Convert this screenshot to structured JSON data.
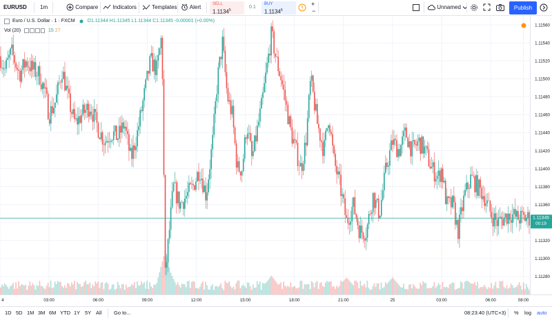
{
  "toolbar": {
    "symbol": "EURUSD",
    "interval": "1m",
    "compare_label": "Compare",
    "indicators_label": "Indicators",
    "templates_label": "Templates",
    "alert_label": "Alert",
    "sell_label": "SELL",
    "sell_price": "1.1134",
    "sell_price_sup": "5",
    "spread": "0.1",
    "buy_label": "BUY",
    "buy_price": "1.1134",
    "buy_price_sup": "6",
    "layout_name": "Unnamed",
    "publish_label": "Publish",
    "icons": [
      "compare-icon",
      "indicators-icon",
      "templates-icon",
      "alert-icon",
      "info-icon",
      "plus-icon",
      "minus-icon",
      "checkbox-icon",
      "cloud-icon",
      "chevron-down-icon",
      "gear-icon",
      "fullscreen-icon",
      "camera-icon",
      "arrow-right-icon"
    ]
  },
  "legend": {
    "title": "Euro / U.S. Dollar · 1 · FXCM",
    "ohlc": "O1.11344  H1.11345  L1.11344  C1.11345  -0.00001 (+0.00%)",
    "vol_label": "Vol (20)",
    "vol_a": "15",
    "vol_b": "27"
  },
  "colors": {
    "up": "#26a69a",
    "down": "#ef5350",
    "last_price": "#26a69a",
    "grid": "#f0f3fa",
    "axis_text": "#131722"
  },
  "chart_data": {
    "type": "candlestick",
    "symbol": "EURUSD",
    "ylim": [
      1.1126,
      1.1157
    ],
    "yticks": [
      1.1128,
      1.113,
      1.1132,
      1.1134,
      1.1136,
      1.1138,
      1.114,
      1.1142,
      1.1144,
      1.1146,
      1.1148,
      1.115,
      1.1152,
      1.1154,
      1.1156
    ],
    "ytick_labels": [
      "1.11280",
      "1.11300",
      "1.11320",
      "1.11340",
      "1.11360",
      "1.11380",
      "1.11400",
      "1.11420",
      "1.11440",
      "1.11460",
      "1.11480",
      "1.11500",
      "1.11520",
      "1.11540",
      "1.11560"
    ],
    "xrange_hours": [
      0.0,
      32.4
    ],
    "xticks": [
      {
        "label": "4",
        "h": 0
      },
      {
        "label": "03:00",
        "h": 3
      },
      {
        "label": "06:00",
        "h": 6
      },
      {
        "label": "09:00",
        "h": 9
      },
      {
        "label": "12:00",
        "h": 12
      },
      {
        "label": "15:00",
        "h": 15
      },
      {
        "label": "18:00",
        "h": 18
      },
      {
        "label": "21:00",
        "h": 21
      },
      {
        "label": "25",
        "h": 24
      },
      {
        "label": "03:00",
        "h": 27
      },
      {
        "label": "06:00",
        "h": 30
      },
      {
        "label": "08:00",
        "h": 32
      }
    ],
    "price_path": [
      [
        0.0,
        1.11525
      ],
      [
        0.3,
        1.1151
      ],
      [
        0.7,
        1.1153
      ],
      [
        1.2,
        1.11505
      ],
      [
        1.6,
        1.1152
      ],
      [
        2.0,
        1.1151
      ],
      [
        2.4,
        1.11505
      ],
      [
        2.8,
        1.1148
      ],
      [
        3.0,
        1.1146
      ],
      [
        3.4,
        1.11475
      ],
      [
        3.8,
        1.1151
      ],
      [
        4.2,
        1.11475
      ],
      [
        4.6,
        1.1145
      ],
      [
        5.0,
        1.1146
      ],
      [
        5.5,
        1.1147
      ],
      [
        6.0,
        1.11445
      ],
      [
        6.4,
        1.1143
      ],
      [
        6.8,
        1.1144
      ],
      [
        7.2,
        1.11435
      ],
      [
        7.6,
        1.1145
      ],
      [
        8.0,
        1.1141
      ],
      [
        8.4,
        1.1144
      ],
      [
        8.8,
        1.1148
      ],
      [
        9.2,
        1.1152
      ],
      [
        9.6,
        1.1151
      ],
      [
        9.9,
        1.1155
      ],
      [
        10.1,
        1.1128
      ],
      [
        10.3,
        1.1132
      ],
      [
        10.6,
        1.1138
      ],
      [
        11.0,
        1.1136
      ],
      [
        11.4,
        1.1137
      ],
      [
        11.8,
        1.1138
      ],
      [
        12.2,
        1.114
      ],
      [
        12.6,
        1.1137
      ],
      [
        13.0,
        1.1143
      ],
      [
        13.3,
        1.115
      ],
      [
        13.6,
        1.1154
      ],
      [
        13.9,
        1.1148
      ],
      [
        14.2,
        1.1146
      ],
      [
        14.5,
        1.114
      ],
      [
        14.8,
        1.114
      ],
      [
        15.1,
        1.1145
      ],
      [
        15.4,
        1.1141
      ],
      [
        15.7,
        1.1144
      ],
      [
        16.0,
        1.1147
      ],
      [
        16.3,
        1.1151
      ],
      [
        16.6,
        1.1155
      ],
      [
        16.9,
        1.1152
      ],
      [
        17.2,
        1.115
      ],
      [
        17.5,
        1.1147
      ],
      [
        17.8,
        1.1144
      ],
      [
        18.1,
        1.1142
      ],
      [
        18.4,
        1.114
      ],
      [
        18.7,
        1.1143
      ],
      [
        19.0,
        1.115
      ],
      [
        19.4,
        1.1145
      ],
      [
        19.8,
        1.1142
      ],
      [
        20.1,
        1.1146
      ],
      [
        20.4,
        1.1141
      ],
      [
        20.8,
        1.1138
      ],
      [
        21.2,
        1.1134
      ],
      [
        21.6,
        1.1136
      ],
      [
        22.0,
        1.1133
      ],
      [
        22.4,
        1.1133
      ],
      [
        22.8,
        1.1137
      ],
      [
        23.2,
        1.1135
      ],
      [
        23.6,
        1.114
      ],
      [
        24.0,
        1.1143
      ],
      [
        24.4,
        1.1142
      ],
      [
        24.8,
        1.1144
      ],
      [
        25.2,
        1.1142
      ],
      [
        25.6,
        1.1143
      ],
      [
        26.0,
        1.1142
      ],
      [
        26.4,
        1.114
      ],
      [
        26.8,
        1.1139
      ],
      [
        27.0,
        1.114
      ],
      [
        27.3,
        1.1136
      ],
      [
        27.7,
        1.1136
      ],
      [
        28.0,
        1.1133
      ],
      [
        28.4,
        1.1137
      ],
      [
        28.8,
        1.1139
      ],
      [
        29.2,
        1.1138
      ],
      [
        29.6,
        1.1137
      ],
      [
        30.0,
        1.1135
      ],
      [
        30.4,
        1.1134
      ],
      [
        30.8,
        1.11345
      ],
      [
        31.2,
        1.1135
      ],
      [
        31.6,
        1.11345
      ],
      [
        32.0,
        1.11345
      ],
      [
        32.4,
        1.11345
      ]
    ],
    "last_price": "1.11345",
    "countdown": "00:19",
    "volume_spikes": [
      [
        10.1,
        1.0
      ],
      [
        10.3,
        0.55
      ],
      [
        16.6,
        0.35
      ],
      [
        21.2,
        0.3
      ],
      [
        24.0,
        0.3
      ]
    ]
  },
  "bottombar": {
    "ranges": [
      "1D",
      "5D",
      "1M",
      "3M",
      "6M",
      "YTD",
      "1Y",
      "5Y",
      "All"
    ],
    "goto_label": "Go to...",
    "clock": "08:23:40 (UTC+3)",
    "percent_label": "%",
    "log_label": "log",
    "auto_label": "auto"
  }
}
